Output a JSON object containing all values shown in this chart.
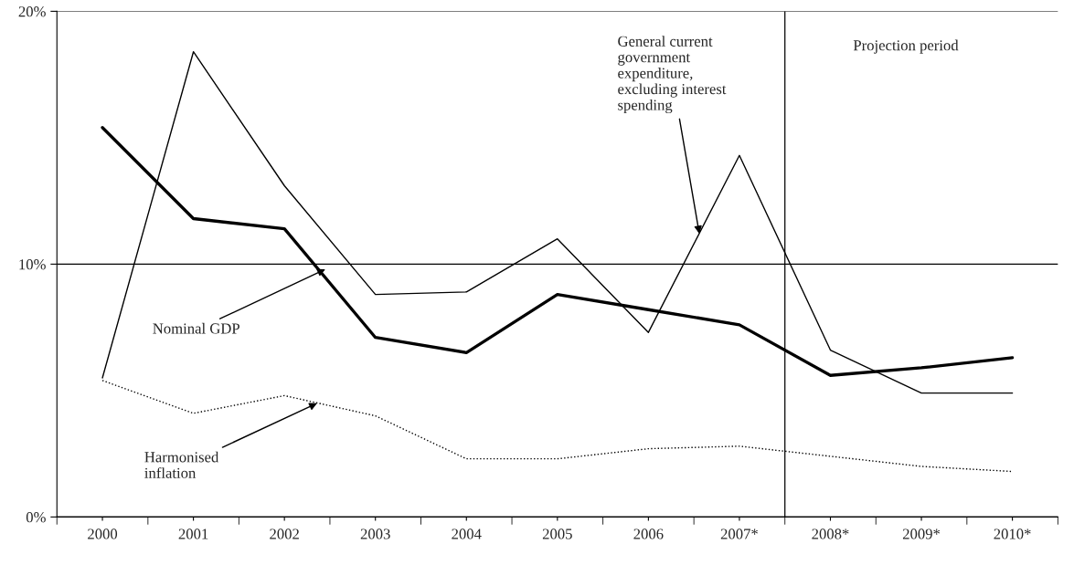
{
  "chart_data": {
    "type": "line",
    "x": [
      2000,
      2001,
      2002,
      2003,
      2004,
      2005,
      2006,
      2007,
      2008,
      2009,
      2010
    ],
    "series": [
      {
        "color": "#000000",
        "line_style": "solid",
        "values": [
          5.5,
          18.4,
          13.1,
          8.8,
          8.9,
          11.0,
          7.3,
          14.3,
          6.6,
          4.9,
          4.9
        ]
      },
      {
        "color": "#000000",
        "line_style": "solid",
        "values": [
          15.4,
          11.8,
          11.4,
          7.1,
          6.5,
          8.8,
          8.2,
          7.6,
          5.6,
          5.9,
          6.3
        ]
      },
      {
        "color": "#000000",
        "line_style": "dotted",
        "values": [
          5.4,
          4.1,
          4.8,
          4.0,
          2.3,
          2.3,
          2.7,
          2.8,
          2.4,
          2.0,
          1.8
        ]
      }
    ],
    "xlim": [
      1999.5,
      2010.5
    ],
    "xticks": [
      2000,
      2001,
      2002,
      2003,
      2004,
      2005,
      2006,
      {
        "value": 2007,
        "label": "2007*"
      },
      {
        "value": 2008,
        "label": "2008*"
      },
      {
        "value": 2009,
        "label": "2009*"
      },
      {
        "value": 2010,
        "label": "2010*"
      }
    ],
    "ylim": [
      0,
      20
    ],
    "yticks": [
      {
        "value": 0,
        "label": "0%"
      },
      {
        "value": 10,
        "label": "10%"
      },
      {
        "value": 20,
        "label": "20%"
      }
    ],
    "grid": "y",
    "marker": "none",
    "ref_lines": [
      {
        "axis": "x",
        "value": 2007.5,
        "label": "Projection period",
        "color": "#000000"
      }
    ],
    "annotations": [
      {
        "text": "General current\ngovernment\nexpenditure,\nexcluding interest\nspending",
        "x": 2006.56,
        "y": 11.2
      },
      {
        "text": "Nominal GDP",
        "x": 2002.45,
        "y": 9.8
      },
      {
        "text": "Harmonised\ninflation",
        "x": 2002.36,
        "y": 4.5
      }
    ]
  }
}
